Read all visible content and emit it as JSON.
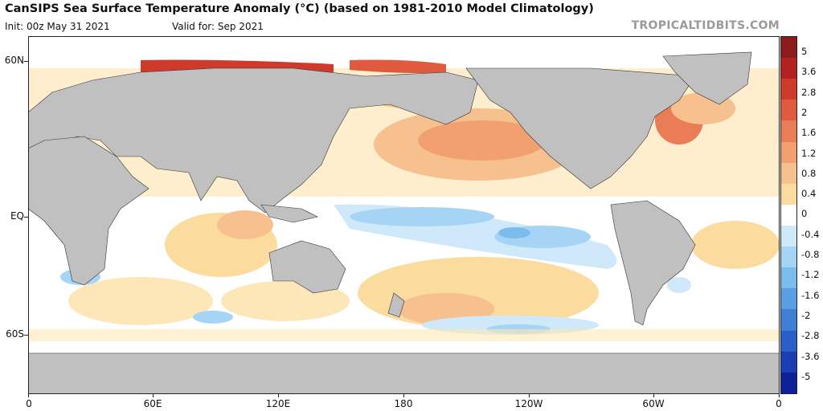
{
  "header": {
    "title": "CanSIPS Sea Surface Temperature Anomaly (°C) (based on 1981-2010 Model Climatology)",
    "init": "Init: 00z May 31 2021",
    "valid": "Valid for: Sep 2021",
    "brand": "TROPICALTIDBITS.COM"
  },
  "map": {
    "lat_labels": [
      "60N",
      "EQ",
      "60S"
    ],
    "lon_labels": [
      "0",
      "60E",
      "120E",
      "180",
      "120W",
      "60W",
      "0"
    ]
  },
  "colorbar": {
    "labels": [
      "5",
      "3.6",
      "2.8",
      "2",
      "1.6",
      "1.2",
      "0.8",
      "0.4",
      "0",
      "-0.4",
      "-0.8",
      "-1.2",
      "-1.6",
      "-2",
      "-2.8",
      "-3.6",
      "-5"
    ],
    "colors": [
      "#8b1a1a",
      "#b2231f",
      "#cf3a2a",
      "#e05a3e",
      "#ea7d55",
      "#f2a070",
      "#f7c08f",
      "#fbdc9e",
      "#ffffff",
      "#cfe9fb",
      "#a6d4f5",
      "#7bbcee",
      "#5a9fe3",
      "#3f7fd6",
      "#2a5ec8",
      "#1a3fb5",
      "#0d2299"
    ]
  }
}
